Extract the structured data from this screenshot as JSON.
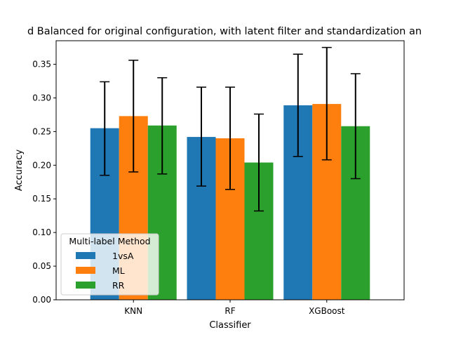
{
  "chart_data": {
    "type": "bar",
    "title": "d Balanced for original configuration, with latent filter and standardization an",
    "xlabel": "Classifier",
    "ylabel": "Accuracy",
    "categories": [
      "KNN",
      "RF",
      "XGBoost"
    ],
    "ylim": [
      0,
      0.385
    ],
    "yticks": [
      "0.00",
      "0.05",
      "0.10",
      "0.15",
      "0.20",
      "0.25",
      "0.30",
      "0.35"
    ],
    "series": [
      {
        "name": "1vsA",
        "color": "#1f77b4",
        "values": [
          0.255,
          0.242,
          0.289
        ],
        "err_low": [
          0.185,
          0.169,
          0.213
        ],
        "err_high": [
          0.324,
          0.316,
          0.365
        ]
      },
      {
        "name": "ML",
        "color": "#ff7f0e",
        "values": [
          0.273,
          0.24,
          0.291
        ],
        "err_low": [
          0.19,
          0.164,
          0.208
        ],
        "err_high": [
          0.356,
          0.316,
          0.375
        ]
      },
      {
        "name": "RR",
        "color": "#2ca02c",
        "values": [
          0.259,
          0.204,
          0.258
        ],
        "err_low": [
          0.187,
          0.132,
          0.18
        ],
        "err_high": [
          0.33,
          0.276,
          0.336
        ]
      }
    ],
    "legend": {
      "title": "Multi-label Method",
      "placement": "lower-left"
    },
    "grid": false
  }
}
